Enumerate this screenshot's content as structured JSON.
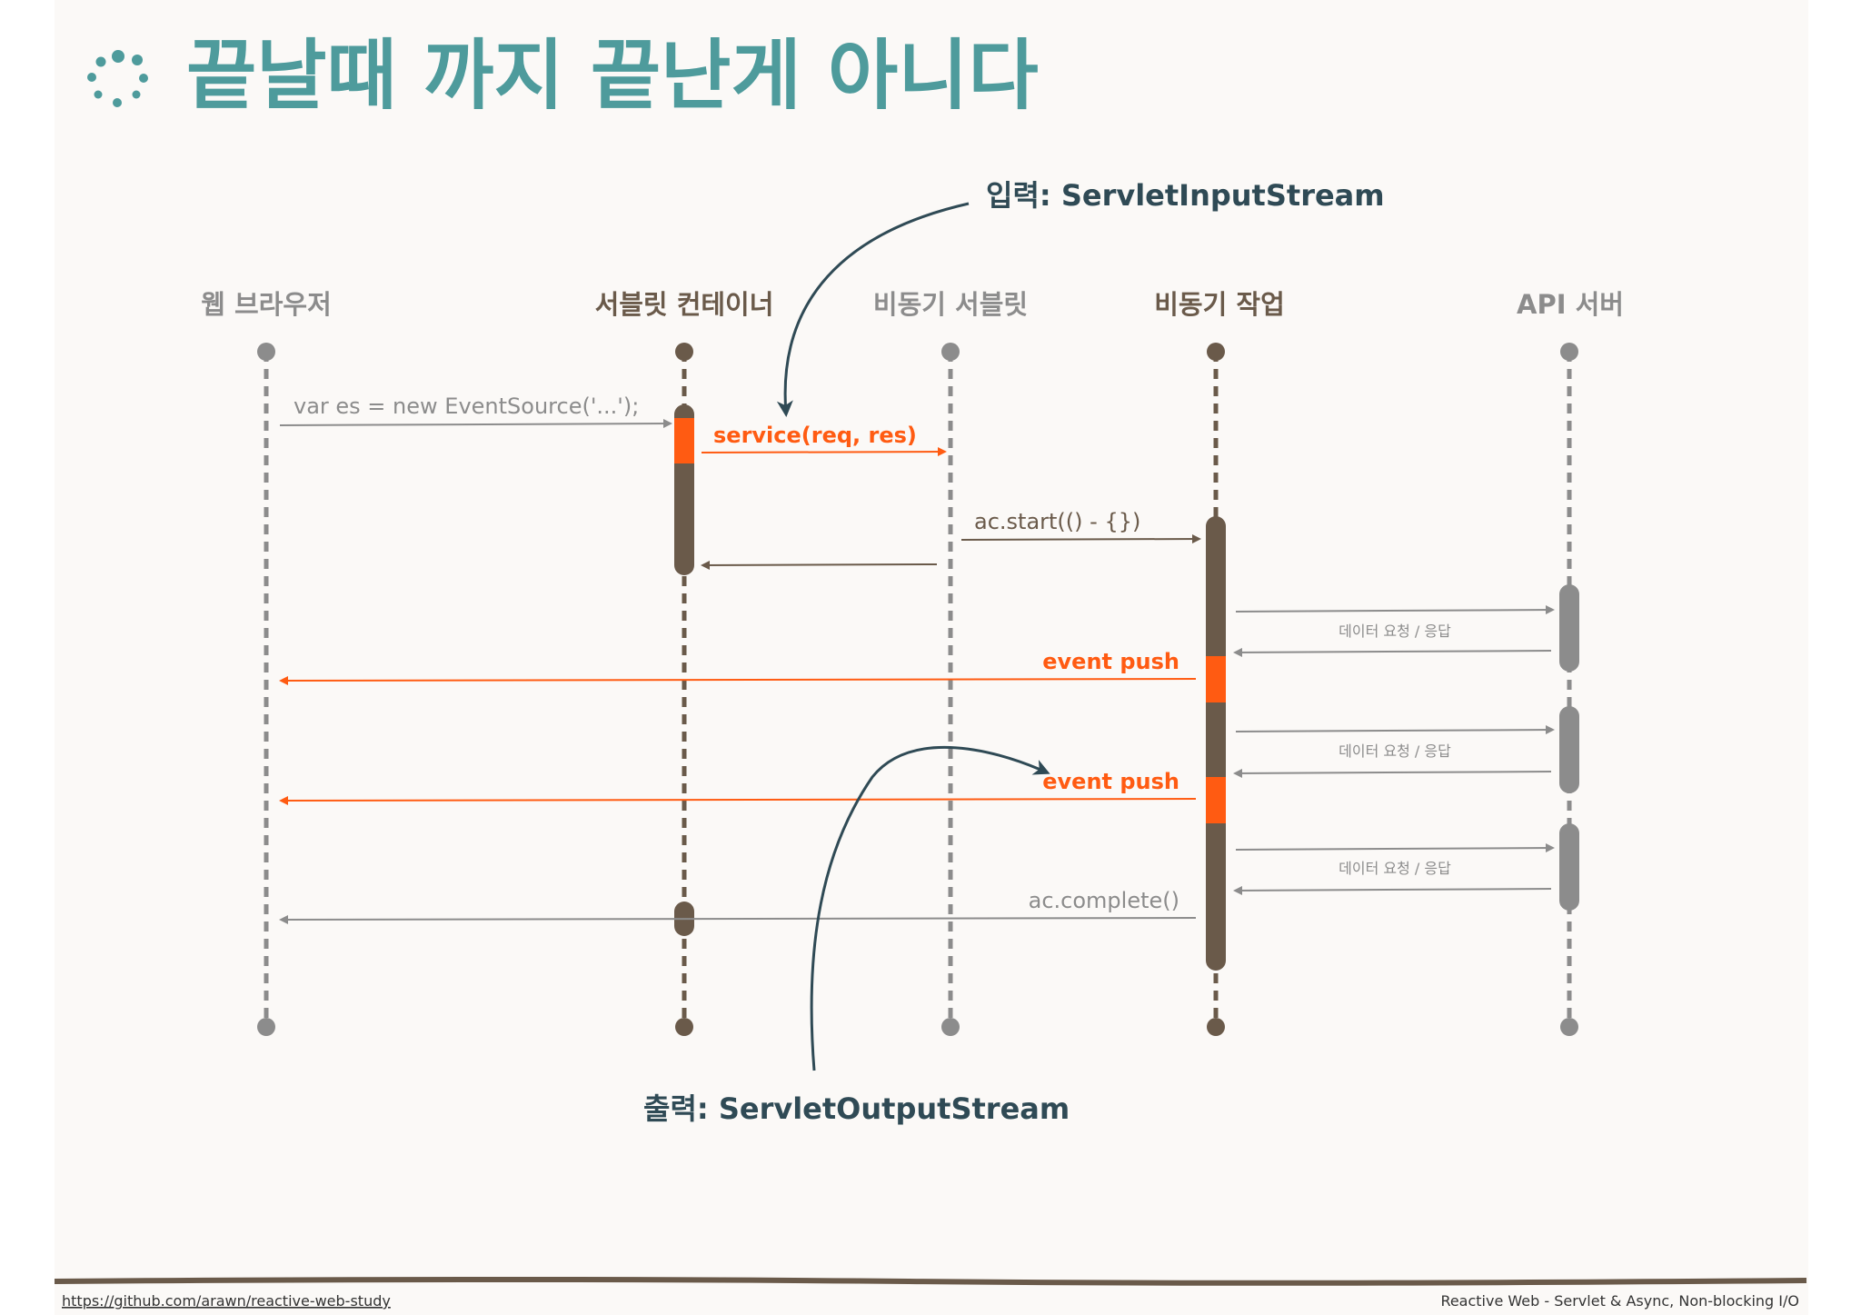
{
  "title": "끝날때 까지 끝난게 아니다",
  "colors": {
    "teal": "#4e9b9c",
    "dark": "#6a5a4a",
    "gray": "#8c8c8c",
    "orange": "#ff5b12",
    "navy": "#2f4a55",
    "background": "#fbf9f7"
  },
  "participants": [
    {
      "label": "웹 브라우저"
    },
    {
      "label": "서블릿 컨테이너"
    },
    {
      "label": "비동기 서블릿"
    },
    {
      "label": "비동기 작업"
    },
    {
      "label": "API 서버"
    }
  ],
  "messages": {
    "event_source": "var es = new EventSource('...');",
    "service": "service(req, res)",
    "ac_start": "ac.start(() - {})",
    "event_push_1": "event push",
    "event_push_2": "event push",
    "ac_complete": "ac.complete()",
    "api_1": "데이터 요청 / 응답",
    "api_2": "데이터 요청 / 응답",
    "api_3": "데이터 요청 / 응답"
  },
  "annotations": {
    "input": "입력: ServletInputStream",
    "output": "출력: ServletOutputStream"
  },
  "footer": {
    "link": "https://github.com/arawn/reactive-web-study",
    "caption": "Reactive Web - Servlet & Async, Non-blocking I/O"
  }
}
